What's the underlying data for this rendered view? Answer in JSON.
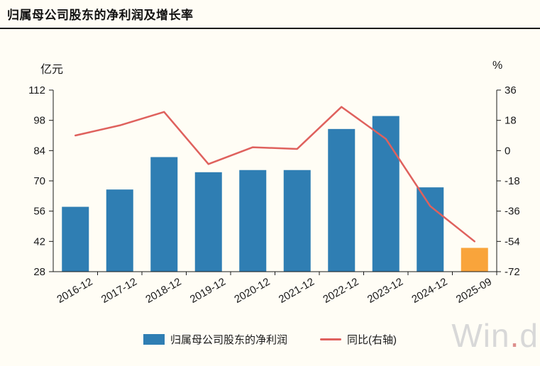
{
  "watermark": {
    "prefix": "Win",
    "dot": ".",
    "suffix": "d"
  },
  "colors": {
    "background": "#fffdf5",
    "bar": "#2f7eb3",
    "bar_highlight": "#f9a43b",
    "line": "#df615d",
    "axis": "#1a1a1a",
    "tick_text": "#1a1a1a",
    "watermark_gray": "#d8d8d8",
    "watermark_dot": "#dd8f8c"
  },
  "chart_data": {
    "type": "bar",
    "subtype": "bar+line combo, dual axis",
    "title": "归属母公司股东的净利润及增长率",
    "categories": [
      "2016-12",
      "2017-12",
      "2018-12",
      "2019-12",
      "2020-12",
      "2021-12",
      "2022-12",
      "2023-12",
      "2024-12",
      "2025-09"
    ],
    "series": [
      {
        "name": "归属母公司股东的净利润",
        "type": "bar",
        "axis": "left",
        "values": [
          58,
          66,
          81,
          74,
          75,
          75,
          94,
          100,
          67,
          39
        ],
        "highlight_index": 9
      },
      {
        "name": "同比(右轴)",
        "type": "line",
        "axis": "right",
        "values": [
          9,
          15,
          23,
          -8,
          2,
          1,
          26,
          7,
          -33,
          -54
        ]
      }
    ],
    "left_axis": {
      "unit": "亿元",
      "min": 28,
      "max": 112,
      "ticks": [
        112,
        98,
        84,
        70,
        56,
        42,
        28
      ]
    },
    "right_axis": {
      "unit": "%",
      "min": -72,
      "max": 36,
      "ticks": [
        36,
        18,
        0,
        -18,
        -36,
        -54,
        -72
      ]
    },
    "grid": false,
    "legend_position": "bottom"
  }
}
